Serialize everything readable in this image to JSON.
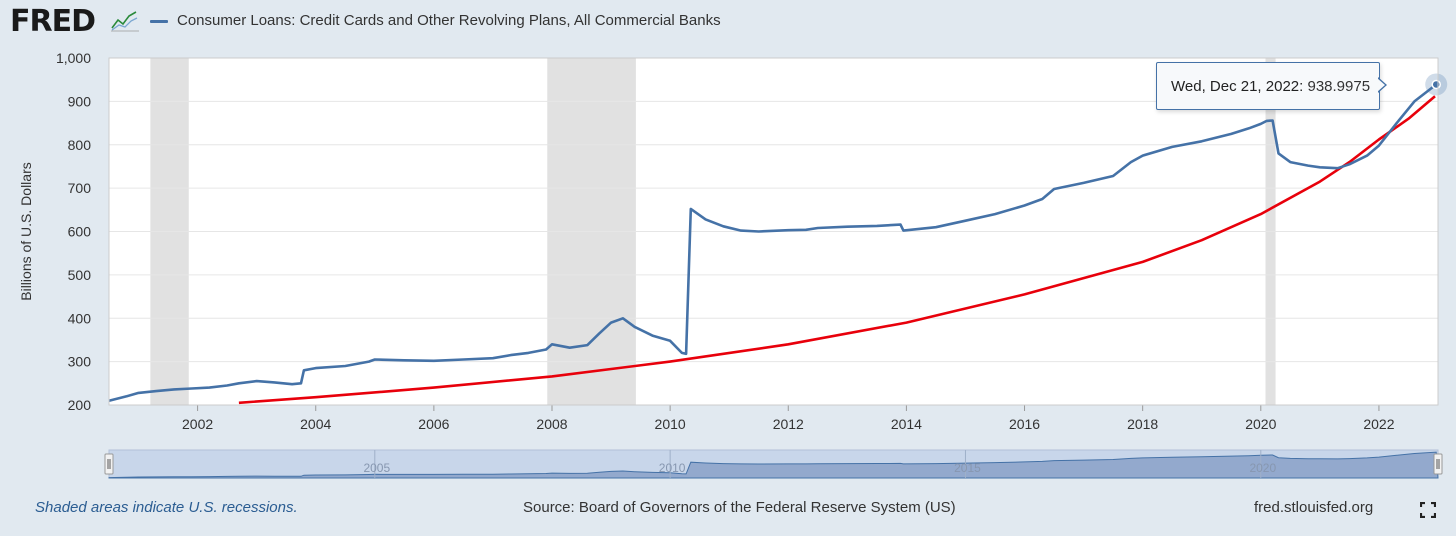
{
  "header": {
    "logo_text": "FRED",
    "series_title": "Consumer Loans: Credit Cards and Other Revolving Plans, All Commercial Banks"
  },
  "tooltip": {
    "date": "Wed, Dec 21, 2022:",
    "value": "938.9975"
  },
  "footer": {
    "recession_note": "Shaded areas indicate U.S. recessions.",
    "source": "Source: Board of Governors of the Federal Reserve System (US)",
    "site": "fred.stlouisfed.org"
  },
  "colors": {
    "series": "#4572a7",
    "trend": "#e8000b",
    "recession": "#e1e1e1",
    "navigator_fill": "#93a9cd"
  },
  "chart_data": {
    "type": "line",
    "title": "",
    "ylabel": "Billions of U.S. Dollars",
    "xlabel": "",
    "ylim": [
      200,
      1000
    ],
    "xlim": [
      2000.5,
      2023.0
    ],
    "y_ticks": [
      "200",
      "300",
      "400",
      "500",
      "600",
      "700",
      "800",
      "900",
      "1,000"
    ],
    "x_ticks": [
      "2002",
      "2004",
      "2006",
      "2008",
      "2010",
      "2012",
      "2014",
      "2016",
      "2018",
      "2020",
      "2022"
    ],
    "navigator_ticks": [
      "2005",
      "2010",
      "2015",
      "2020"
    ],
    "grid": true,
    "recessions": [
      [
        2001.2,
        2001.85
      ],
      [
        2007.92,
        2009.42
      ],
      [
        2020.08,
        2020.25
      ]
    ],
    "series": [
      {
        "name": "Consumer Loans: Credit Cards and Other Revolving Plans, All Commercial Banks",
        "x": [
          2000.5,
          2000.8,
          2001.0,
          2001.3,
          2001.6,
          2001.9,
          2002.2,
          2002.5,
          2002.7,
          2003.0,
          2003.3,
          2003.6,
          2003.75,
          2003.8,
          2004.0,
          2004.5,
          2004.9,
          2005.0,
          2005.5,
          2006.0,
          2006.5,
          2007.0,
          2007.3,
          2007.6,
          2007.9,
          2008.0,
          2008.3,
          2008.6,
          2008.8,
          2009.0,
          2009.2,
          2009.4,
          2009.7,
          2010.0,
          2010.2,
          2010.27,
          2010.35,
          2010.6,
          2010.9,
          2011.2,
          2011.5,
          2012.0,
          2012.3,
          2012.5,
          2013.0,
          2013.5,
          2013.9,
          2013.95,
          2014.5,
          2015.0,
          2015.5,
          2016.0,
          2016.3,
          2016.5,
          2017.0,
          2017.5,
          2017.8,
          2018.0,
          2018.5,
          2019.0,
          2019.5,
          2019.8,
          2020.0,
          2020.1,
          2020.2,
          2020.3,
          2020.5,
          2020.8,
          2021.0,
          2021.3,
          2021.5,
          2021.8,
          2022.0,
          2022.3,
          2022.6,
          2022.97
        ],
        "values": [
          210,
          220,
          228,
          232,
          236,
          238,
          240,
          245,
          250,
          255,
          252,
          248,
          250,
          280,
          285,
          290,
          300,
          305,
          303,
          302,
          305,
          308,
          315,
          320,
          328,
          340,
          332,
          338,
          365,
          390,
          400,
          380,
          360,
          348,
          320,
          318,
          652,
          628,
          612,
          602,
          600,
          603,
          604,
          608,
          611,
          613,
          616,
          602,
          610,
          625,
          640,
          660,
          675,
          698,
          712,
          728,
          760,
          775,
          795,
          808,
          825,
          838,
          848,
          855,
          856,
          780,
          760,
          752,
          748,
          746,
          755,
          775,
          798,
          850,
          900,
          939
        ]
      },
      {
        "name": "",
        "x": [
          2002.7,
          2004.0,
          2006.0,
          2008.0,
          2010.0,
          2012.0,
          2014.0,
          2016.0,
          2018.0,
          2019.0,
          2020.0,
          2021.0,
          2021.5,
          2022.0,
          2022.5,
          2022.95
        ],
        "values": [
          205,
          218,
          240,
          266,
          300,
          340,
          390,
          455,
          530,
          580,
          640,
          715,
          760,
          812,
          860,
          912
        ]
      }
    ]
  }
}
